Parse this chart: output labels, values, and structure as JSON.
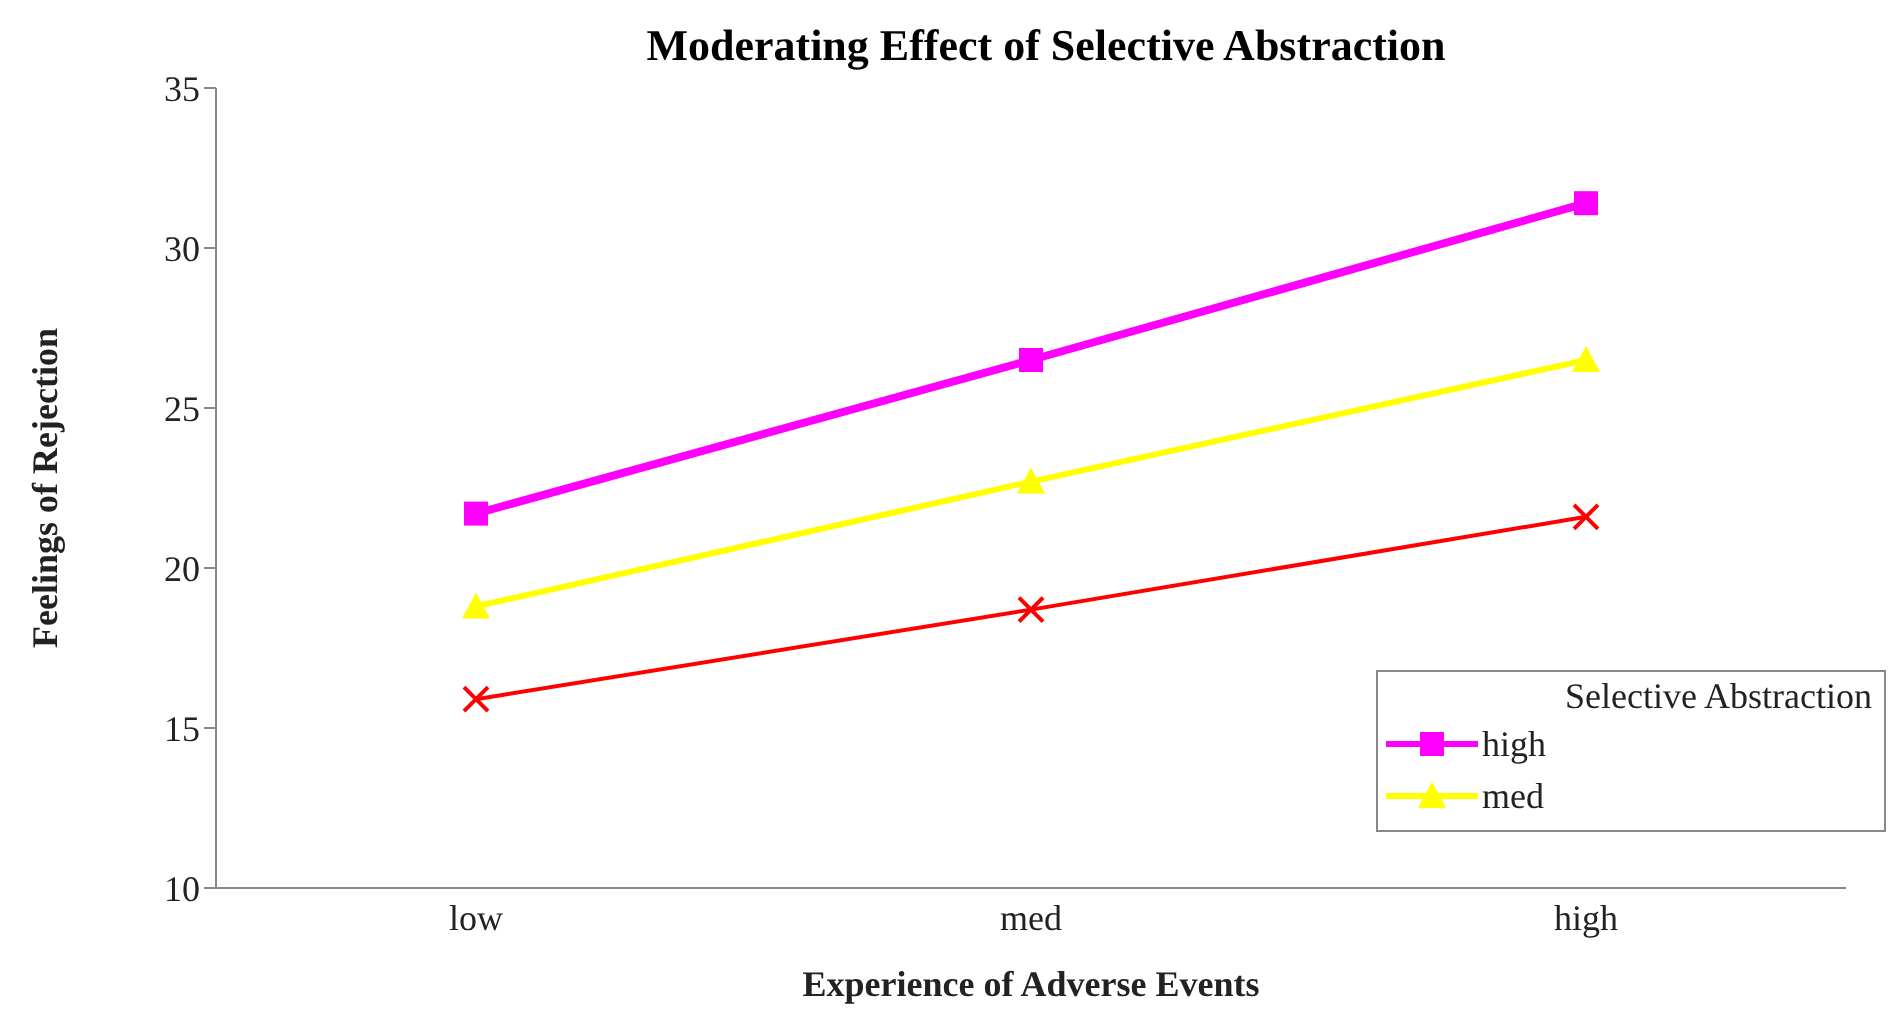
{
  "chart_data": {
    "type": "line",
    "title": "Moderating Effect of Selective Abstraction",
    "xlabel": "Experience of Adverse Events",
    "ylabel": "Feelings of Rejection",
    "legend_title": "Selective Abstraction",
    "legend": "bottom right",
    "grid": false,
    "categories": [
      "low",
      "med",
      "high"
    ],
    "ylim": [
      10,
      35
    ],
    "yticks": [
      10,
      15,
      20,
      25,
      30,
      35
    ],
    "series": [
      {
        "name": "high",
        "color": "#ff00ff",
        "values": [
          21.7,
          26.5,
          31.4
        ],
        "marker": "square"
      },
      {
        "name": "med",
        "color": "#ffff00",
        "values": [
          18.8,
          22.7,
          26.5
        ],
        "marker": "triangle"
      },
      {
        "color": "#ff0000",
        "values": [
          15.9,
          18.7,
          21.6
        ],
        "marker": "cross"
      }
    ]
  }
}
